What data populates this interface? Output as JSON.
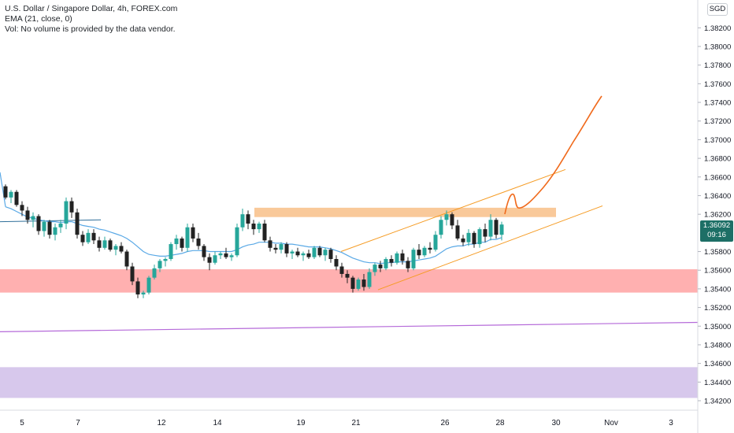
{
  "header": {
    "symbol_line": "U.S. Dollar / Singapore Dollar, 4h, FOREX.com",
    "ema_line": "EMA (21, close, 0)",
    "vol_line": "Vol: No volume is provided by the data vendor."
  },
  "currency_button": "SGD",
  "current_price": {
    "value": "1.36092",
    "countdown": "09:16"
  },
  "colors": {
    "up": "#26a69a",
    "down": "#222222",
    "ema": "#5aa9e6",
    "resistance_zone": "#f9c99a",
    "support_zone": "#ffb0b0",
    "lower_zone": "#d7c8ec",
    "trendline": "#f59b23",
    "projection": "#f06a1c",
    "long_line": "#b56ad9",
    "price_tag": "#1d6f66"
  },
  "chart_data": {
    "type": "candlestick",
    "title": "U.S. Dollar / Singapore Dollar, 4h, FOREX.com",
    "ylim": [
      1.3414,
      1.3845
    ],
    "y_ticks": [
      "1.38200",
      "1.38000",
      "1.37800",
      "1.37600",
      "1.37400",
      "1.37200",
      "1.37000",
      "1.36800",
      "1.36600",
      "1.36400",
      "1.36200",
      "1.36092",
      "1.35800",
      "1.35600",
      "1.35400",
      "1.35200",
      "1.35000",
      "1.34800",
      "1.34600",
      "1.34400",
      "1.34200"
    ],
    "x_ticks": [
      "5",
      "7",
      "12",
      "14",
      "19",
      "21",
      "26",
      "28",
      "30",
      "Nov",
      "3"
    ],
    "candles": [
      [
        1.365,
        1.3652,
        1.3636,
        1.3638
      ],
      [
        1.3638,
        1.3646,
        1.3632,
        1.3644
      ],
      [
        1.3644,
        1.3646,
        1.3628,
        1.363
      ],
      [
        1.363,
        1.3634,
        1.3618,
        1.3624
      ],
      [
        1.3624,
        1.3628,
        1.361,
        1.3614
      ],
      [
        1.3614,
        1.3622,
        1.3606,
        1.3618
      ],
      [
        1.3618,
        1.362,
        1.3598,
        1.3602
      ],
      [
        1.3602,
        1.3614,
        1.3596,
        1.3612
      ],
      [
        1.3612,
        1.3614,
        1.3594,
        1.3598
      ],
      [
        1.3598,
        1.361,
        1.3592,
        1.3606
      ],
      [
        1.3606,
        1.3614,
        1.36,
        1.361
      ],
      [
        1.361,
        1.3638,
        1.3604,
        1.3634
      ],
      [
        1.3634,
        1.3638,
        1.3616,
        1.3622
      ],
      [
        1.3622,
        1.3626,
        1.3594,
        1.3598
      ],
      [
        1.3598,
        1.3602,
        1.3586,
        1.359
      ],
      [
        1.359,
        1.3604,
        1.3588,
        1.36
      ],
      [
        1.36,
        1.3604,
        1.3588,
        1.3592
      ],
      [
        1.3592,
        1.3596,
        1.358,
        1.3584
      ],
      [
        1.3584,
        1.3596,
        1.3582,
        1.3592
      ],
      [
        1.3592,
        1.3594,
        1.358,
        1.3582
      ],
      [
        1.3582,
        1.3588,
        1.3576,
        1.3586
      ],
      [
        1.3586,
        1.359,
        1.3578,
        1.358
      ],
      [
        1.358,
        1.3582,
        1.356,
        1.3564
      ],
      [
        1.3564,
        1.3568,
        1.3544,
        1.3548
      ],
      [
        1.3548,
        1.3552,
        1.353,
        1.3534
      ],
      [
        1.3534,
        1.3538,
        1.353,
        1.3536
      ],
      [
        1.3536,
        1.3554,
        1.3534,
        1.3552
      ],
      [
        1.3552,
        1.3566,
        1.355,
        1.3562
      ],
      [
        1.3562,
        1.3572,
        1.3558,
        1.357
      ],
      [
        1.357,
        1.3574,
        1.3564,
        1.3572
      ],
      [
        1.3572,
        1.359,
        1.357,
        1.3588
      ],
      [
        1.3588,
        1.3598,
        1.3582,
        1.3594
      ],
      [
        1.3594,
        1.3596,
        1.358,
        1.3584
      ],
      [
        1.3584,
        1.361,
        1.358,
        1.3606
      ],
      [
        1.3606,
        1.361,
        1.359,
        1.3594
      ],
      [
        1.3594,
        1.36,
        1.3582,
        1.3586
      ],
      [
        1.3586,
        1.3588,
        1.357,
        1.3574
      ],
      [
        1.3574,
        1.3578,
        1.356,
        1.3568
      ],
      [
        1.3568,
        1.358,
        1.3566,
        1.3576
      ],
      [
        1.3576,
        1.358,
        1.3572,
        1.3578
      ],
      [
        1.3578,
        1.3584,
        1.3572,
        1.3574
      ],
      [
        1.3574,
        1.3578,
        1.357,
        1.3576
      ],
      [
        1.3576,
        1.361,
        1.3574,
        1.3606
      ],
      [
        1.3606,
        1.3626,
        1.3602,
        1.362
      ],
      [
        1.362,
        1.3624,
        1.3604,
        1.361
      ],
      [
        1.361,
        1.3614,
        1.3598,
        1.3604
      ],
      [
        1.3604,
        1.3612,
        1.36,
        1.361
      ],
      [
        1.361,
        1.3614,
        1.359,
        1.3592
      ],
      [
        1.3592,
        1.3596,
        1.358,
        1.3584
      ],
      [
        1.3584,
        1.3588,
        1.3578,
        1.3582
      ],
      [
        1.3582,
        1.359,
        1.3578,
        1.3588
      ],
      [
        1.3588,
        1.359,
        1.3574,
        1.3578
      ],
      [
        1.3578,
        1.3582,
        1.3572,
        1.358
      ],
      [
        1.358,
        1.3584,
        1.3574,
        1.3576
      ],
      [
        1.3576,
        1.358,
        1.357,
        1.3578
      ],
      [
        1.3578,
        1.3582,
        1.3572,
        1.3574
      ],
      [
        1.3574,
        1.3586,
        1.3572,
        1.3584
      ],
      [
        1.3584,
        1.3586,
        1.3574,
        1.3576
      ],
      [
        1.3576,
        1.3584,
        1.357,
        1.3582
      ],
      [
        1.3582,
        1.3584,
        1.3568,
        1.3572
      ],
      [
        1.3572,
        1.3576,
        1.356,
        1.3564
      ],
      [
        1.3564,
        1.3568,
        1.3552,
        1.3556
      ],
      [
        1.3556,
        1.356,
        1.3546,
        1.3552
      ],
      [
        1.3552,
        1.3554,
        1.3536,
        1.354
      ],
      [
        1.354,
        1.3552,
        1.3538,
        1.355
      ],
      [
        1.355,
        1.3556,
        1.3538,
        1.3542
      ],
      [
        1.3542,
        1.3562,
        1.354,
        1.3558
      ],
      [
        1.3558,
        1.3568,
        1.3554,
        1.3566
      ],
      [
        1.3566,
        1.357,
        1.3558,
        1.3562
      ],
      [
        1.3562,
        1.3574,
        1.356,
        1.3572
      ],
      [
        1.3572,
        1.3576,
        1.3564,
        1.3568
      ],
      [
        1.3568,
        1.358,
        1.3566,
        1.3578
      ],
      [
        1.3578,
        1.3582,
        1.3566,
        1.357
      ],
      [
        1.357,
        1.3574,
        1.3558,
        1.3562
      ],
      [
        1.3562,
        1.3584,
        1.356,
        1.3582
      ],
      [
        1.3582,
        1.3588,
        1.3572,
        1.3576
      ],
      [
        1.3576,
        1.3586,
        1.3574,
        1.3584
      ],
      [
        1.3584,
        1.359,
        1.3578,
        1.3582
      ],
      [
        1.3582,
        1.3602,
        1.358,
        1.3598
      ],
      [
        1.3598,
        1.3618,
        1.3594,
        1.3614
      ],
      [
        1.3614,
        1.3624,
        1.3608,
        1.362
      ],
      [
        1.362,
        1.3622,
        1.3604,
        1.3608
      ],
      [
        1.3608,
        1.3614,
        1.3592,
        1.3594
      ],
      [
        1.3594,
        1.3598,
        1.3586,
        1.359
      ],
      [
        1.359,
        1.3604,
        1.3586,
        1.36
      ],
      [
        1.36,
        1.3602,
        1.3584,
        1.3588
      ],
      [
        1.3588,
        1.3606,
        1.3584,
        1.3604
      ],
      [
        1.3604,
        1.361,
        1.359,
        1.3596
      ],
      [
        1.3596,
        1.362,
        1.3592,
        1.3614
      ],
      [
        1.3614,
        1.3616,
        1.3594,
        1.3598
      ],
      [
        1.3598,
        1.3612,
        1.3592,
        1.3609
      ]
    ],
    "ema": [
      1.3628,
      1.3626,
      1.3623,
      1.362,
      1.3617,
      1.3616,
      1.3614,
      1.3613,
      1.3612,
      1.3612,
      1.3611,
      1.3612,
      1.3612,
      1.361,
      1.3608,
      1.3607,
      1.3606,
      1.3604,
      1.3603,
      1.3601,
      1.3599,
      1.3597,
      1.3594,
      1.359,
      1.3585,
      1.358,
      1.3577,
      1.3576,
      1.3575,
      1.3575,
      1.3576,
      1.3577,
      1.3578,
      1.358,
      1.3581,
      1.3581,
      1.3581,
      1.358,
      1.358,
      1.358,
      1.358,
      1.358,
      1.3582,
      1.3585,
      1.3587,
      1.3588,
      1.359,
      1.359,
      1.359,
      1.3589,
      1.3589,
      1.3588,
      1.3588,
      1.3587,
      1.3586,
      1.3585,
      1.3585,
      1.3585,
      1.3584,
      1.3583,
      1.3581,
      1.3579,
      1.3576,
      1.3573,
      1.3571,
      1.3569,
      1.3568,
      1.3568,
      1.3567,
      1.3568,
      1.3568,
      1.3569,
      1.3569,
      1.3569,
      1.357,
      1.3571,
      1.3572,
      1.3573,
      1.3575,
      1.3579,
      1.3583,
      1.3585,
      1.3586,
      1.3586,
      1.3588,
      1.3588,
      1.359,
      1.359,
      1.3593,
      1.3593,
      1.3595
    ],
    "ema_early": [
      [
        1.3612,
        0
      ],
      [
        1.3614,
        10
      ],
      [
        1.3614,
        16
      ]
    ]
  }
}
